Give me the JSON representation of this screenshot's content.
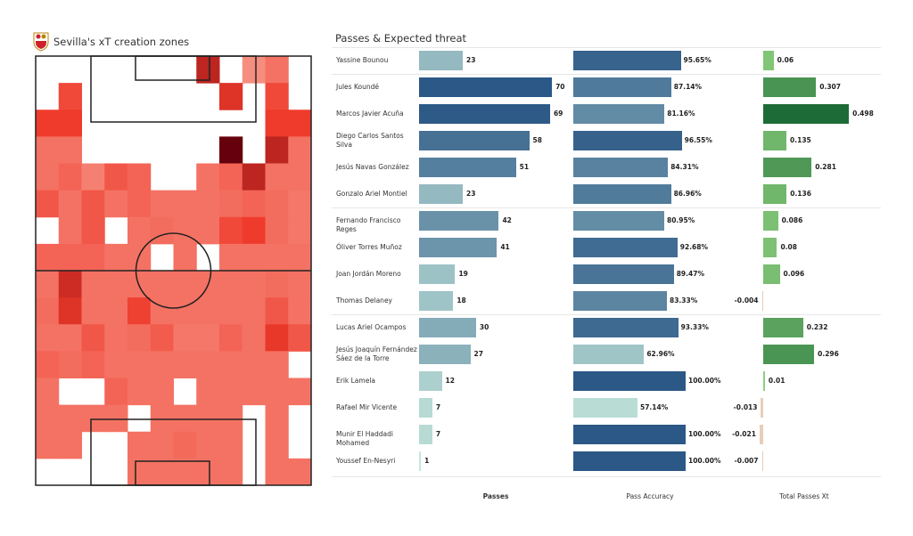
{
  "heatmap": {
    "title": "Sevilla's xT creation zones",
    "crest_text": "SFC",
    "color_scale": [
      "#fde0d2",
      "#67000d"
    ],
    "xt_grid_relative": [
      [
        0,
        0,
        0,
        0,
        0,
        0,
        0,
        0.75,
        0,
        0.3,
        0.4,
        0
      ],
      [
        0,
        0.55,
        0,
        0,
        0,
        0,
        0,
        0,
        0.65,
        0,
        0.55,
        0
      ],
      [
        0.6,
        0.6,
        0,
        0,
        0,
        0,
        0,
        0,
        0,
        0,
        0.6,
        0.6
      ],
      [
        0.4,
        0.4,
        0,
        0,
        0,
        0,
        0,
        0,
        1.0,
        0,
        0.75,
        0.4
      ],
      [
        0.4,
        0.45,
        0.35,
        0.5,
        0.45,
        0,
        0,
        0.4,
        0.45,
        0.75,
        0.4,
        0.4
      ],
      [
        0.5,
        0.4,
        0.5,
        0.4,
        0.45,
        0.4,
        0.4,
        0.4,
        0.42,
        0.45,
        0.42,
        0.38
      ],
      [
        0,
        0.4,
        0.5,
        0,
        0.4,
        0.42,
        0.4,
        0.4,
        0.55,
        0.6,
        0.42,
        0.38
      ],
      [
        0.45,
        0.45,
        0.45,
        0.4,
        0.4,
        0,
        0.4,
        0,
        0.4,
        0.4,
        0.4,
        0.4
      ],
      [
        0.4,
        0.7,
        0.4,
        0.4,
        0.4,
        0.4,
        0.4,
        0.4,
        0.4,
        0.4,
        0.42,
        0.4
      ],
      [
        0.42,
        0.65,
        0.4,
        0.4,
        0.58,
        0.4,
        0.4,
        0.4,
        0.4,
        0.4,
        0.5,
        0.4
      ],
      [
        0.4,
        0.4,
        0.5,
        0.4,
        0.42,
        0.48,
        0.38,
        0.38,
        0.45,
        0.4,
        0.62,
        0.5
      ],
      [
        0.45,
        0.42,
        0.45,
        0.4,
        0.4,
        0.4,
        0.4,
        0.4,
        0.4,
        0.4,
        0.4,
        0
      ],
      [
        0.4,
        0,
        0,
        0.45,
        0.4,
        0.4,
        0,
        0.4,
        0.4,
        0.4,
        0.4,
        0.4
      ],
      [
        0.4,
        0.4,
        0.4,
        0.4,
        0,
        0.4,
        0.4,
        0.4,
        0.4,
        0,
        0.4,
        0
      ],
      [
        0.4,
        0.4,
        0,
        0,
        0.4,
        0.4,
        0.43,
        0.4,
        0.4,
        0,
        0.4,
        0
      ],
      [
        0,
        0,
        0,
        0,
        0.4,
        0.4,
        0.4,
        0.4,
        0.4,
        0,
        0.4,
        0.4
      ]
    ]
  },
  "chart_data": {
    "type": "table",
    "title": "Passes & Expected threat",
    "columns": [
      "Passes",
      "Pass Accuracy",
      "Total Passes Xt"
    ],
    "group_breaks_after": [
      0,
      5,
      9
    ],
    "colors": {
      "blue_low": "#c7e9dd",
      "blue_high": "#2b5886",
      "green_low": "#8fd27f",
      "green_high": "#1d6b37",
      "negative": "#e8cdb8"
    },
    "rows": [
      {
        "player": "Yassine Bounou",
        "passes": 23,
        "accuracy": 95.65,
        "accuracy_label": "95.65%",
        "xt": 0.06,
        "xt_label": "0.06"
      },
      {
        "player": "Jules Koundé",
        "passes": 70,
        "accuracy": 87.14,
        "accuracy_label": "87.14%",
        "xt": 0.307,
        "xt_label": "0.307"
      },
      {
        "player": "Marcos Javier Acuña",
        "passes": 69,
        "accuracy": 81.16,
        "accuracy_label": "81.16%",
        "xt": 0.498,
        "xt_label": "0.498"
      },
      {
        "player": "Diego Carlos Santos Silva",
        "passes": 58,
        "accuracy": 96.55,
        "accuracy_label": "96.55%",
        "xt": 0.135,
        "xt_label": "0.135"
      },
      {
        "player": "Jesús Navas González",
        "passes": 51,
        "accuracy": 84.31,
        "accuracy_label": "84.31%",
        "xt": 0.281,
        "xt_label": "0.281"
      },
      {
        "player": "Gonzalo Ariel Montiel",
        "passes": 23,
        "accuracy": 86.96,
        "accuracy_label": "86.96%",
        "xt": 0.136,
        "xt_label": "0.136"
      },
      {
        "player": "Fernando Francisco Reges",
        "passes": 42,
        "accuracy": 80.95,
        "accuracy_label": "80.95%",
        "xt": 0.086,
        "xt_label": "0.086"
      },
      {
        "player": "Óliver Torres Muñoz",
        "passes": 41,
        "accuracy": 92.68,
        "accuracy_label": "92.68%",
        "xt": 0.08,
        "xt_label": "0.08"
      },
      {
        "player": "Joan Jordán Moreno",
        "passes": 19,
        "accuracy": 89.47,
        "accuracy_label": "89.47%",
        "xt": 0.096,
        "xt_label": "0.096"
      },
      {
        "player": "Thomas Delaney",
        "passes": 18,
        "accuracy": 83.33,
        "accuracy_label": "83.33%",
        "xt": -0.004,
        "xt_label": "-0.004"
      },
      {
        "player": "Lucas Ariel Ocampos",
        "passes": 30,
        "accuracy": 93.33,
        "accuracy_label": "93.33%",
        "xt": 0.232,
        "xt_label": "0.232"
      },
      {
        "player": "Jesús Joaquín Fernández Sáez de la Torre",
        "passes": 27,
        "accuracy": 62.96,
        "accuracy_label": "62.96%",
        "xt": 0.296,
        "xt_label": "0.296"
      },
      {
        "player": "Erik Lamela",
        "passes": 12,
        "accuracy": 100.0,
        "accuracy_label": "100.00%",
        "xt": 0.01,
        "xt_label": "0.01"
      },
      {
        "player": "Rafael Mir Vicente",
        "passes": 7,
        "accuracy": 57.14,
        "accuracy_label": "57.14%",
        "xt": -0.013,
        "xt_label": "-0.013"
      },
      {
        "player": "Munir El Haddadi Mohamed",
        "passes": 7,
        "accuracy": 100.0,
        "accuracy_label": "100.00%",
        "xt": -0.021,
        "xt_label": "-0.021"
      },
      {
        "player": "Youssef En-Nesyri",
        "passes": 1,
        "accuracy": 100.0,
        "accuracy_label": "100.00%",
        "xt": -0.007,
        "xt_label": "-0.007"
      }
    ]
  }
}
